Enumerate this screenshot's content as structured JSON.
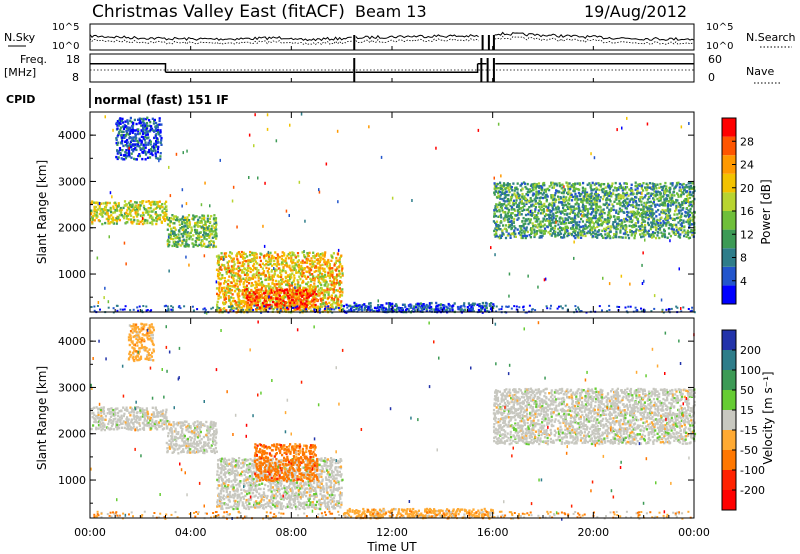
{
  "header": {
    "site": "Christmas Valley East (fitACF)",
    "beam": "Beam 13",
    "date": "19/Aug/2012"
  },
  "noise_panel": {
    "left_label": "N.Sky",
    "right_label": "N.Search",
    "left_ticks": [
      "10^5",
      "10^0"
    ],
    "right_ticks": [
      "10^5",
      "10^0"
    ]
  },
  "freq_panel": {
    "left_label_line1": "Freq.",
    "left_label_line2": "[MHz]",
    "right_label": "Nave",
    "left_ticks": [
      "18",
      "8"
    ],
    "right_ticks": [
      "60",
      "0"
    ],
    "freq_steps_mhz": [
      [
        0,
        14.5
      ],
      [
        3.0,
        11.5
      ],
      [
        10.45,
        null
      ],
      [
        10.55,
        11.5
      ],
      [
        15.4,
        14.5
      ],
      [
        15.75,
        null
      ],
      [
        16.1,
        14.5
      ],
      [
        24,
        14.5
      ]
    ]
  },
  "cpid": {
    "label": "CPID",
    "mode": "normal (fast) 151 IF"
  },
  "power_panel": {
    "ylabel": "Slant Range [km]",
    "yticks": [
      "4000",
      "3000",
      "2000",
      "1000"
    ],
    "colorbar_label": "Power [dB]",
    "colorbar_ticks": [
      "28",
      "24",
      "20",
      "16",
      "12",
      "8",
      "4"
    ],
    "colors": [
      "#0000ff",
      "#2255cc",
      "#2e7d8a",
      "#3c9a55",
      "#6fbf3a",
      "#b8d430",
      "#f2c200",
      "#ff9900",
      "#ff5500",
      "#ff0000"
    ]
  },
  "velocity_panel": {
    "ylabel": "Slant Range [km]",
    "yticks": [
      "4000",
      "3000",
      "2000",
      "1000"
    ],
    "colorbar_label": "Velocity [m s⁻¹]",
    "colorbar_ticks": [
      "200",
      "100",
      "50",
      "15",
      "-15",
      "-50",
      "-100",
      "-200"
    ],
    "colors": [
      "#2233aa",
      "#2e7d8a",
      "#3c9a55",
      "#66cc33",
      "#c8c8c0",
      "#ffaa33",
      "#ff7700",
      "#ff2200",
      "#ff0000"
    ]
  },
  "xaxis": {
    "label": "Time UT",
    "ticks": [
      "00:00",
      "04:00",
      "08:00",
      "12:00",
      "16:00",
      "20:00",
      "00:00"
    ]
  },
  "chart_data": {
    "type": "heatmap",
    "x_range_hours": [
      0,
      24
    ],
    "y_range_km": [
      180,
      4500
    ],
    "power_bands": [
      {
        "t0": 0.0,
        "t1": 3.0,
        "r0": 2100,
        "r1": 2600,
        "value_db": 18
      },
      {
        "t0": 3.0,
        "t1": 5.0,
        "r0": 1600,
        "r1": 2300,
        "value_db": 14
      },
      {
        "t0": 5.0,
        "t1": 10.0,
        "r0": 200,
        "r1": 1500,
        "value_db": 20
      },
      {
        "t0": 6.0,
        "t1": 9.0,
        "r0": 250,
        "r1": 700,
        "value_db": 27
      },
      {
        "t0": 1.0,
        "t1": 2.8,
        "r0": 3500,
        "r1": 4400,
        "value_db": 6
      },
      {
        "t0": 10.0,
        "t1": 16.0,
        "r0": 200,
        "r1": 400,
        "value_db": 5
      },
      {
        "t0": 16.0,
        "t1": 24.0,
        "r0": 1800,
        "r1": 3000,
        "value_db": 12
      }
    ],
    "velocity_bands": [
      {
        "t0": 0.0,
        "t1": 3.0,
        "r0": 2100,
        "r1": 2600,
        "value_ms": 0
      },
      {
        "t0": 3.0,
        "t1": 5.0,
        "r0": 1600,
        "r1": 2300,
        "value_ms": 0
      },
      {
        "t0": 5.0,
        "t1": 10.0,
        "r0": 400,
        "r1": 1500,
        "value_ms": 0
      },
      {
        "t0": 1.5,
        "t1": 2.5,
        "r0": 3600,
        "r1": 4400,
        "value_ms": -30
      },
      {
        "t0": 6.5,
        "t1": 9.0,
        "r0": 1000,
        "r1": 1800,
        "value_ms": -60
      },
      {
        "t0": 10.0,
        "t1": 16.0,
        "r0": 200,
        "r1": 400,
        "value_ms": -40
      },
      {
        "t0": 16.0,
        "t1": 24.0,
        "r0": 1800,
        "r1": 3000,
        "value_ms": 0
      }
    ]
  }
}
